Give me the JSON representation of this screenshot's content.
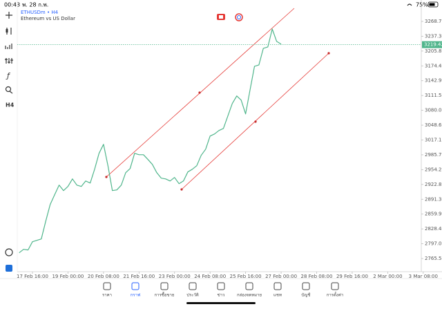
{
  "status_bar": {
    "time": "00:43",
    "date": "พ. 28 ก.พ.",
    "battery": "75%"
  },
  "toolbar": {
    "timeframe": "H4"
  },
  "chart_data": {
    "type": "line",
    "title": "ETHUSDm • H4",
    "subtitle": "Ethereum vs US Dollar",
    "color": "#4fb58b",
    "categories": [
      null,
      null,
      null,
      "17 Feb 16:00",
      null,
      null,
      null,
      null,
      null,
      null,
      null,
      "19 Feb 00:00",
      null,
      null,
      null,
      null,
      null,
      null,
      null,
      "20 Feb 08:00",
      null,
      null,
      null,
      null,
      null,
      null,
      null,
      "21 Feb 16:00",
      null,
      null,
      null,
      null,
      null,
      null,
      null,
      "23 Feb 00:00",
      null,
      null,
      null,
      null,
      null,
      null,
      null,
      "24 Feb 08:00",
      null,
      null,
      null,
      null,
      null,
      null,
      null,
      "25 Feb 16:00",
      null,
      null,
      null,
      null,
      null,
      null,
      null,
      "27 Feb 00:00",
      null,
      null,
      null,
      null,
      null,
      null,
      null,
      "28 Feb 08:00",
      null,
      null,
      null,
      null,
      null,
      null,
      null,
      "29 Feb 16:00",
      null,
      null,
      null,
      null,
      null,
      null,
      null,
      "2 Mar 00:00",
      null,
      null,
      null,
      null,
      null,
      null,
      null,
      "3 Mar 08:00",
      null
    ],
    "values": [
      2777.8,
      2785.1,
      2783.7,
      2801.2,
      2804.2,
      2807.1,
      2845.2,
      2880.4,
      2900.9,
      2921.4,
      2909.7,
      2918.5,
      2934.6,
      2921.4,
      2918.5,
      2930.2,
      2925.8,
      2955.1,
      2988.8,
      3007.9,
      2962.5,
      2909.7,
      2911.2,
      2921.4,
      2947.8,
      2956.6,
      2988.8,
      2985.9,
      2985.9,
      2975.7,
      2965.4,
      2947.8,
      2936.1,
      2934.6,
      2930.2,
      2937.6,
      2924.4,
      2930.2,
      2949.3,
      2955.1,
      2962.5,
      2984.5,
      2997.6,
      3025.5,
      3029.9,
      3037.2,
      3041.6,
      3068.0,
      3094.4,
      3110.5,
      3101.7,
      3072.4,
      3123.7,
      3173.5,
      3176.5,
      3211.6,
      3214.6,
      3252.6,
      3226.3,
      3220.4,
      null,
      null,
      null,
      null,
      null,
      null,
      null,
      null,
      null,
      null,
      null,
      null,
      null,
      null,
      null,
      null,
      null,
      null,
      null,
      null,
      null,
      null,
      null,
      null,
      null,
      null,
      null,
      null,
      null,
      null,
      null,
      null,
      null
    ],
    "current_price": 3219.42,
    "ylim": [
      2737.7,
      3299.5
    ],
    "yticks": [
      2765.55,
      {
        "value": 2797,
        "label": "2797.00"
      },
      2828.45,
      {
        "value": 2859.9,
        "label": "2859.90"
      },
      2891.35,
      {
        "value": 2922.8,
        "label": "2922.80"
      },
      2954.25,
      {
        "value": 2985.7,
        "label": "2985.70"
      },
      3017.15,
      {
        "value": 3048.6,
        "label": "3048.60"
      },
      3080.05,
      {
        "value": 3111.5,
        "label": "3111.50"
      },
      3142.95,
      {
        "value": 3174.4,
        "label": "3174.40"
      },
      3205.85,
      {
        "value": 3237.3,
        "label": "3237.30"
      },
      3268.75
    ],
    "grid": false
  },
  "bottom_nav": [
    "ราคา",
    "กราฟ",
    "การซื้อขาย",
    "ประวัติ",
    "ข่าว",
    "กล่องจดหมาย",
    "แชท",
    "บัญชี",
    "การตั้งค่า"
  ]
}
